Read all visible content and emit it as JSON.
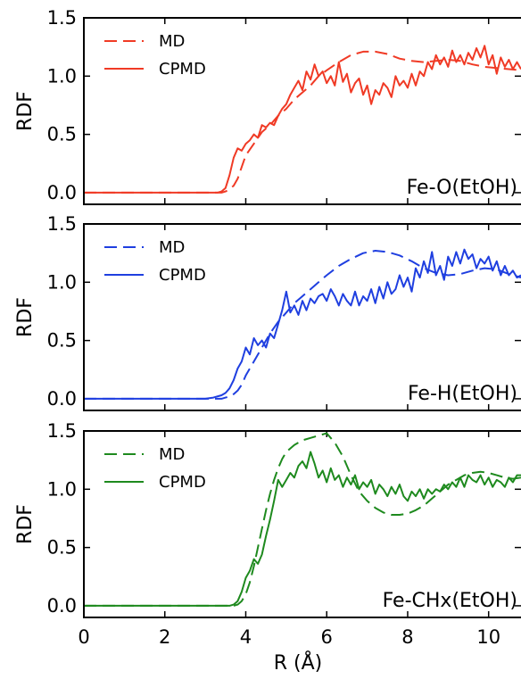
{
  "chart_data": [
    {
      "type": "line",
      "ylabel": "RDF",
      "xlim": [
        0,
        10.8
      ],
      "ylim": [
        -0.1,
        1.5
      ],
      "yticks": [
        "0.0",
        "0.5",
        "1.0",
        "1.5"
      ],
      "label": "Fe-O(EtOH)",
      "color": "#f03a25",
      "legend_position": "top-left",
      "series": [
        {
          "name": "MD",
          "style": "dashed",
          "x": [
            0,
            3.4,
            3.5,
            3.6,
            3.7,
            3.8,
            3.9,
            4.0,
            4.2,
            4.4,
            4.6,
            4.8,
            5.0,
            5.2,
            5.4,
            5.6,
            5.8,
            6.0,
            6.3,
            6.6,
            6.9,
            7.2,
            7.5,
            7.8,
            8.1,
            8.4,
            8.7,
            9.0,
            9.3,
            9.6,
            9.9,
            10.2,
            10.5,
            10.8
          ],
          "y": [
            0,
            0,
            0.01,
            0.03,
            0.06,
            0.12,
            0.22,
            0.32,
            0.42,
            0.52,
            0.58,
            0.66,
            0.72,
            0.8,
            0.86,
            0.92,
            1.0,
            1.05,
            1.12,
            1.18,
            1.21,
            1.21,
            1.19,
            1.15,
            1.13,
            1.12,
            1.13,
            1.14,
            1.13,
            1.1,
            1.08,
            1.07,
            1.06,
            1.05
          ]
        },
        {
          "name": "CPMD",
          "style": "solid",
          "x": [
            0,
            3.3,
            3.4,
            3.5,
            3.6,
            3.7,
            3.8,
            3.9,
            4.0,
            4.1,
            4.2,
            4.3,
            4.4,
            4.5,
            4.6,
            4.7,
            4.8,
            4.9,
            5.0,
            5.1,
            5.2,
            5.3,
            5.4,
            5.5,
            5.6,
            5.7,
            5.8,
            5.9,
            6.0,
            6.1,
            6.2,
            6.3,
            6.4,
            6.5,
            6.6,
            6.7,
            6.8,
            6.9,
            7.0,
            7.1,
            7.2,
            7.3,
            7.4,
            7.5,
            7.6,
            7.7,
            7.8,
            7.9,
            8.0,
            8.1,
            8.2,
            8.3,
            8.4,
            8.5,
            8.6,
            8.7,
            8.8,
            8.9,
            9.0,
            9.1,
            9.2,
            9.3,
            9.4,
            9.5,
            9.6,
            9.7,
            9.8,
            9.9,
            10.0,
            10.1,
            10.2,
            10.3,
            10.4,
            10.5,
            10.6,
            10.7,
            10.8
          ],
          "y": [
            0,
            0,
            0.01,
            0.04,
            0.15,
            0.3,
            0.38,
            0.36,
            0.42,
            0.45,
            0.5,
            0.47,
            0.58,
            0.56,
            0.6,
            0.58,
            0.66,
            0.72,
            0.76,
            0.84,
            0.9,
            0.96,
            0.88,
            1.04,
            0.97,
            1.1,
            1.0,
            1.04,
            0.94,
            1.0,
            0.92,
            1.12,
            0.95,
            1.02,
            0.86,
            0.94,
            0.98,
            0.84,
            0.92,
            0.76,
            0.88,
            0.84,
            0.94,
            0.9,
            0.82,
            1.0,
            0.92,
            0.96,
            0.9,
            1.02,
            0.92,
            1.04,
            1.0,
            1.12,
            1.06,
            1.18,
            1.1,
            1.16,
            1.08,
            1.22,
            1.12,
            1.18,
            1.1,
            1.2,
            1.14,
            1.24,
            1.16,
            1.26,
            1.1,
            1.18,
            1.02,
            1.16,
            1.08,
            1.14,
            1.06,
            1.12,
            1.06
          ]
        }
      ]
    },
    {
      "type": "line",
      "ylabel": "RDF",
      "xlim": [
        0,
        10.8
      ],
      "ylim": [
        -0.1,
        1.5
      ],
      "yticks": [
        "0.0",
        "0.5",
        "1.0",
        "1.5"
      ],
      "label": "Fe-H(EtOH)",
      "color": "#1f3fe0",
      "legend_position": "top-left",
      "series": [
        {
          "name": "MD",
          "style": "dashed",
          "x": [
            0,
            3.4,
            3.5,
            3.6,
            3.7,
            3.8,
            3.9,
            4.0,
            4.2,
            4.4,
            4.6,
            4.8,
            5.0,
            5.2,
            5.4,
            5.6,
            5.8,
            6.0,
            6.3,
            6.6,
            6.9,
            7.2,
            7.5,
            7.8,
            8.1,
            8.4,
            8.7,
            9.0,
            9.3,
            9.6,
            9.9,
            10.2,
            10.5,
            10.8
          ],
          "y": [
            0,
            0,
            0.01,
            0.02,
            0.04,
            0.07,
            0.12,
            0.2,
            0.32,
            0.44,
            0.56,
            0.66,
            0.74,
            0.82,
            0.88,
            0.94,
            1.0,
            1.06,
            1.14,
            1.2,
            1.25,
            1.27,
            1.26,
            1.23,
            1.18,
            1.12,
            1.08,
            1.06,
            1.07,
            1.1,
            1.12,
            1.11,
            1.07,
            1.04
          ]
        },
        {
          "name": "CPMD",
          "style": "solid",
          "x": [
            0,
            3.0,
            3.2,
            3.4,
            3.5,
            3.6,
            3.7,
            3.8,
            3.9,
            4.0,
            4.1,
            4.2,
            4.3,
            4.4,
            4.5,
            4.6,
            4.7,
            4.8,
            4.9,
            5.0,
            5.1,
            5.2,
            5.3,
            5.4,
            5.5,
            5.6,
            5.7,
            5.8,
            5.9,
            6.0,
            6.1,
            6.2,
            6.3,
            6.4,
            6.5,
            6.6,
            6.7,
            6.8,
            6.9,
            7.0,
            7.1,
            7.2,
            7.3,
            7.4,
            7.5,
            7.6,
            7.7,
            7.8,
            7.9,
            8.0,
            8.1,
            8.2,
            8.3,
            8.4,
            8.5,
            8.6,
            8.7,
            8.8,
            8.9,
            9.0,
            9.1,
            9.2,
            9.3,
            9.4,
            9.5,
            9.6,
            9.7,
            9.8,
            9.9,
            10.0,
            10.1,
            10.2,
            10.3,
            10.4,
            10.5,
            10.6,
            10.7,
            10.8
          ],
          "y": [
            0,
            0,
            0.01,
            0.03,
            0.05,
            0.09,
            0.16,
            0.26,
            0.32,
            0.44,
            0.38,
            0.52,
            0.46,
            0.5,
            0.44,
            0.56,
            0.52,
            0.64,
            0.76,
            0.92,
            0.74,
            0.8,
            0.72,
            0.84,
            0.76,
            0.86,
            0.82,
            0.88,
            0.9,
            0.84,
            0.94,
            0.88,
            0.8,
            0.9,
            0.84,
            0.8,
            0.92,
            0.8,
            0.88,
            0.84,
            0.94,
            0.82,
            0.96,
            0.86,
            1.0,
            0.9,
            0.94,
            1.06,
            0.96,
            1.04,
            0.92,
            1.12,
            1.04,
            1.18,
            1.08,
            1.26,
            1.06,
            1.14,
            1.02,
            1.22,
            1.14,
            1.26,
            1.16,
            1.28,
            1.2,
            1.24,
            1.12,
            1.2,
            1.16,
            1.22,
            1.1,
            1.18,
            1.06,
            1.14,
            1.06,
            1.1,
            1.04,
            1.06
          ]
        }
      ]
    },
    {
      "type": "line",
      "ylabel": "RDF",
      "xlabel": "R (Å)",
      "xlim": [
        0,
        10.8
      ],
      "ylim": [
        -0.1,
        1.5
      ],
      "xticks": [
        "0",
        "2",
        "4",
        "6",
        "8",
        "10"
      ],
      "yticks": [
        "0.0",
        "0.5",
        "1.0",
        "1.5"
      ],
      "label": "Fe-CHx(EtOH)",
      "color": "#1e8a1e",
      "legend_position": "top-left",
      "series": [
        {
          "name": "MD",
          "style": "dashed",
          "x": [
            0,
            3.7,
            3.8,
            3.9,
            4.0,
            4.1,
            4.2,
            4.3,
            4.4,
            4.5,
            4.6,
            4.7,
            4.8,
            4.9,
            5.0,
            5.2,
            5.4,
            5.6,
            5.8,
            6.0,
            6.2,
            6.4,
            6.6,
            6.8,
            7.0,
            7.2,
            7.4,
            7.6,
            7.8,
            8.0,
            8.2,
            8.4,
            8.6,
            8.8,
            9.0,
            9.2,
            9.4,
            9.6,
            9.8,
            10.0,
            10.2,
            10.4,
            10.6,
            10.8
          ],
          "y": [
            0,
            0,
            0.01,
            0.04,
            0.1,
            0.2,
            0.34,
            0.5,
            0.66,
            0.82,
            0.96,
            1.08,
            1.18,
            1.26,
            1.32,
            1.38,
            1.42,
            1.44,
            1.46,
            1.48,
            1.4,
            1.28,
            1.12,
            0.98,
            0.9,
            0.84,
            0.8,
            0.78,
            0.78,
            0.79,
            0.82,
            0.86,
            0.92,
            0.98,
            1.04,
            1.08,
            1.12,
            1.14,
            1.15,
            1.14,
            1.12,
            1.1,
            1.09,
            1.1
          ]
        },
        {
          "name": "CPMD",
          "style": "solid",
          "x": [
            0,
            3.6,
            3.7,
            3.8,
            3.9,
            4.0,
            4.1,
            4.2,
            4.3,
            4.4,
            4.5,
            4.6,
            4.7,
            4.8,
            4.9,
            5.0,
            5.1,
            5.2,
            5.3,
            5.4,
            5.5,
            5.6,
            5.7,
            5.8,
            5.9,
            6.0,
            6.1,
            6.2,
            6.3,
            6.4,
            6.5,
            6.6,
            6.7,
            6.8,
            6.9,
            7.0,
            7.1,
            7.2,
            7.3,
            7.4,
            7.5,
            7.6,
            7.7,
            7.8,
            7.9,
            8.0,
            8.1,
            8.2,
            8.3,
            8.4,
            8.5,
            8.6,
            8.7,
            8.8,
            8.9,
            9.0,
            9.1,
            9.2,
            9.3,
            9.4,
            9.5,
            9.6,
            9.7,
            9.8,
            9.9,
            10.0,
            10.1,
            10.2,
            10.3,
            10.4,
            10.5,
            10.6,
            10.7,
            10.8
          ],
          "y": [
            0,
            0,
            0.01,
            0.04,
            0.12,
            0.24,
            0.3,
            0.4,
            0.36,
            0.44,
            0.6,
            0.74,
            0.9,
            1.08,
            1.02,
            1.08,
            1.14,
            1.1,
            1.2,
            1.24,
            1.18,
            1.32,
            1.22,
            1.1,
            1.16,
            1.06,
            1.18,
            1.08,
            1.12,
            1.02,
            1.1,
            1.04,
            1.12,
            1.0,
            1.06,
            1.02,
            1.08,
            0.96,
            1.04,
            1.0,
            0.94,
            1.02,
            0.96,
            1.04,
            0.94,
            0.9,
            0.98,
            0.94,
            1.0,
            0.92,
            1.0,
            0.96,
            1.0,
            0.98,
            1.04,
            1.0,
            1.06,
            1.02,
            1.1,
            1.02,
            1.12,
            1.08,
            1.06,
            1.12,
            1.04,
            1.1,
            1.02,
            1.08,
            1.06,
            1.02,
            1.1,
            1.06,
            1.12,
            1.12
          ]
        }
      ]
    }
  ]
}
